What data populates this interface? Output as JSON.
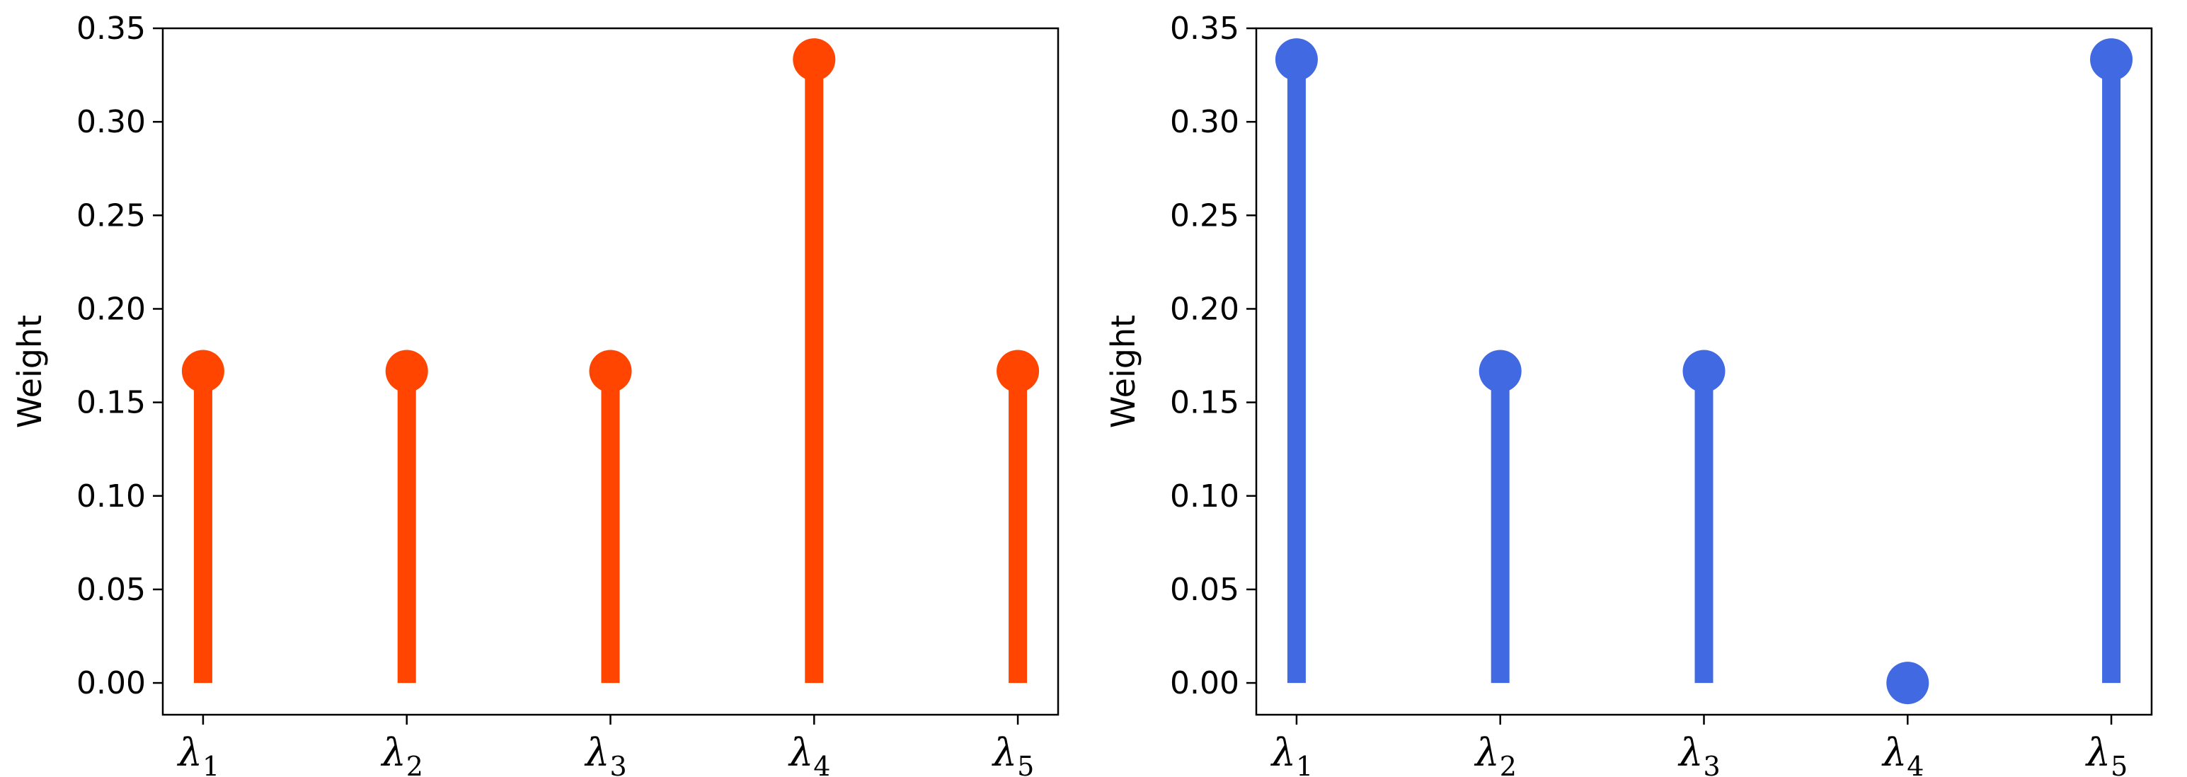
{
  "chart_data": [
    {
      "type": "stem",
      "title": "",
      "xlabel": "",
      "ylabel": "Weight",
      "categories": [
        {
          "symbol": "λ",
          "sub": "1"
        },
        {
          "symbol": "λ",
          "sub": "2"
        },
        {
          "symbol": "λ",
          "sub": "3"
        },
        {
          "symbol": "λ",
          "sub": "4"
        },
        {
          "symbol": "λ",
          "sub": "5"
        }
      ],
      "values": [
        0.1667,
        0.1667,
        0.1667,
        0.3333,
        0.1667
      ],
      "ylim": [
        -0.017,
        0.35
      ],
      "yticks": [
        "0.00",
        "0.05",
        "0.10",
        "0.15",
        "0.20",
        "0.25",
        "0.30",
        "0.35"
      ],
      "color": "#ff4500",
      "grid": false
    },
    {
      "type": "stem",
      "title": "",
      "xlabel": "",
      "ylabel": "Weight",
      "categories": [
        {
          "symbol": "λ",
          "sub": "1"
        },
        {
          "symbol": "λ",
          "sub": "2"
        },
        {
          "symbol": "λ",
          "sub": "3"
        },
        {
          "symbol": "λ",
          "sub": "4"
        },
        {
          "symbol": "λ",
          "sub": "5"
        }
      ],
      "values": [
        0.3333,
        0.1667,
        0.1667,
        0.0,
        0.3333
      ],
      "ylim": [
        -0.017,
        0.35
      ],
      "yticks": [
        "0.00",
        "0.05",
        "0.10",
        "0.15",
        "0.20",
        "0.25",
        "0.30",
        "0.35"
      ],
      "color": "#4169e1",
      "grid": false
    }
  ]
}
